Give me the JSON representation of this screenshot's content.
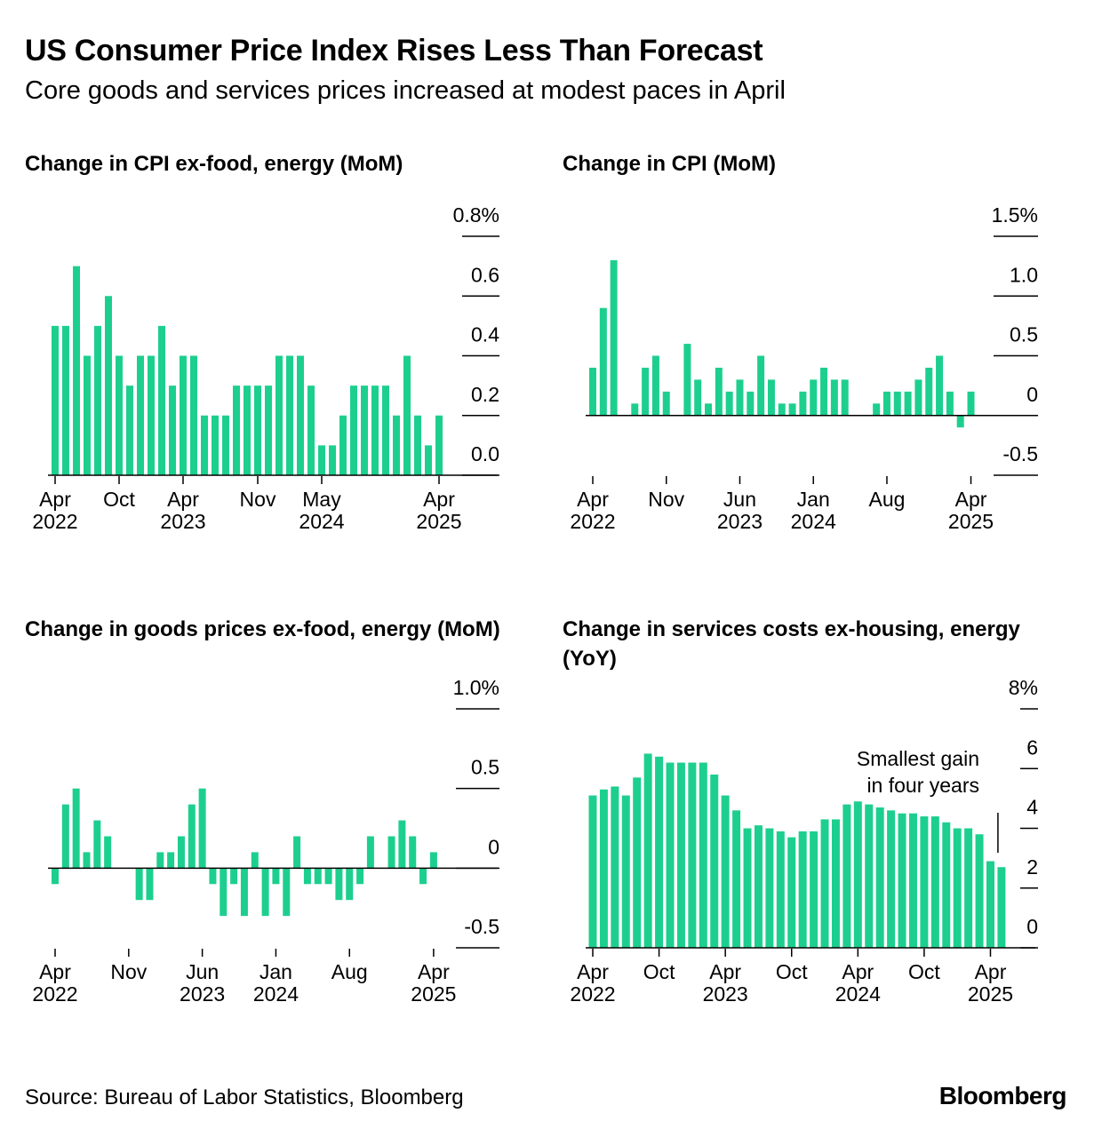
{
  "header": {
    "title": "US Consumer Price Index Rises Less Than Forecast",
    "subtitle": "Core goods and services prices increased at modest paces in April"
  },
  "footer": {
    "source": "Source: Bureau of Labor Statistics, Bloomberg",
    "brand": "Bloomberg"
  },
  "colors": {
    "bar": "#1dcf8e",
    "axis": "#000000"
  },
  "chart_data": [
    {
      "id": "core-cpi",
      "type": "bar",
      "title": "Change in CPI ex-food, energy (MoM)",
      "ylim": [
        0,
        0.8
      ],
      "yticks": [
        {
          "value": 0.8,
          "label": "0.8%"
        },
        {
          "value": 0.6,
          "label": "0.6"
        },
        {
          "value": 0.4,
          "label": "0.4"
        },
        {
          "value": 0.2,
          "label": "0.2"
        },
        {
          "value": 0.0,
          "label": "0.0"
        }
      ],
      "xticks": [
        {
          "index": 0,
          "label": [
            "Apr",
            "2022"
          ]
        },
        {
          "index": 6,
          "label": [
            "Oct"
          ]
        },
        {
          "index": 12,
          "label": [
            "Apr",
            "2023"
          ]
        },
        {
          "index": 19,
          "label": [
            "Nov"
          ]
        },
        {
          "index": 25,
          "label": [
            "May",
            "2024"
          ]
        },
        {
          "index": 36,
          "label": [
            "Apr",
            "2025"
          ]
        }
      ],
      "values": [
        0.5,
        0.5,
        0.7,
        0.4,
        0.5,
        0.6,
        0.4,
        0.3,
        0.4,
        0.4,
        0.5,
        0.3,
        0.4,
        0.4,
        0.2,
        0.2,
        0.2,
        0.3,
        0.3,
        0.3,
        0.3,
        0.4,
        0.4,
        0.4,
        0.3,
        0.1,
        0.1,
        0.2,
        0.3,
        0.3,
        0.3,
        0.3,
        0.2,
        0.4,
        0.2,
        0.1,
        0.2
      ]
    },
    {
      "id": "headline-cpi",
      "type": "bar",
      "title": "Change in CPI (MoM)",
      "ylim": [
        -0.5,
        1.5
      ],
      "yticks": [
        {
          "value": 1.5,
          "label": "1.5%"
        },
        {
          "value": 1.0,
          "label": "1.0"
        },
        {
          "value": 0.5,
          "label": "0.5"
        },
        {
          "value": 0.0,
          "label": "0"
        },
        {
          "value": -0.5,
          "label": "-0.5"
        }
      ],
      "xticks": [
        {
          "index": 0,
          "label": [
            "Apr",
            "2022"
          ]
        },
        {
          "index": 7,
          "label": [
            "Nov"
          ]
        },
        {
          "index": 14,
          "label": [
            "Jun",
            "2023"
          ]
        },
        {
          "index": 21,
          "label": [
            "Jan",
            "2024"
          ]
        },
        {
          "index": 28,
          "label": [
            "Aug"
          ]
        },
        {
          "index": 36,
          "label": [
            "Apr",
            "2025"
          ]
        }
      ],
      "values": [
        0.4,
        0.9,
        1.3,
        0.0,
        0.1,
        0.4,
        0.5,
        0.2,
        0.0,
        0.6,
        0.3,
        0.1,
        0.4,
        0.2,
        0.3,
        0.2,
        0.5,
        0.3,
        0.1,
        0.1,
        0.2,
        0.3,
        0.4,
        0.3,
        0.3,
        0.0,
        0.0,
        0.1,
        0.2,
        0.2,
        0.2,
        0.3,
        0.4,
        0.5,
        0.2,
        -0.1,
        0.2
      ]
    },
    {
      "id": "core-goods",
      "type": "bar",
      "title": "Change in goods prices ex-food, energy (MoM)",
      "ylim": [
        -0.5,
        1.0
      ],
      "yticks": [
        {
          "value": 1.0,
          "label": "1.0%"
        },
        {
          "value": 0.5,
          "label": "0.5"
        },
        {
          "value": 0.0,
          "label": "0"
        },
        {
          "value": -0.5,
          "label": "-0.5"
        }
      ],
      "xticks": [
        {
          "index": 0,
          "label": [
            "Apr",
            "2022"
          ]
        },
        {
          "index": 7,
          "label": [
            "Nov"
          ]
        },
        {
          "index": 14,
          "label": [
            "Jun",
            "2023"
          ]
        },
        {
          "index": 21,
          "label": [
            "Jan",
            "2024"
          ]
        },
        {
          "index": 28,
          "label": [
            "Aug"
          ]
        },
        {
          "index": 36,
          "label": [
            "Apr",
            "2025"
          ]
        }
      ],
      "values": [
        -0.1,
        0.4,
        0.5,
        0.1,
        0.3,
        0.2,
        0.0,
        0.0,
        -0.2,
        -0.2,
        0.1,
        0.1,
        0.2,
        0.4,
        0.5,
        -0.1,
        -0.3,
        -0.1,
        -0.3,
        0.1,
        -0.3,
        -0.1,
        -0.3,
        0.2,
        -0.1,
        -0.1,
        -0.1,
        -0.2,
        -0.2,
        -0.1,
        0.2,
        0.0,
        0.2,
        0.3,
        0.2,
        -0.1,
        0.1
      ]
    },
    {
      "id": "supercore-yoy",
      "type": "bar",
      "title": "Change in services costs ex-housing, energy (YoY)",
      "ylim": [
        0,
        8
      ],
      "yticks": [
        {
          "value": 8,
          "label": "8%"
        },
        {
          "value": 6,
          "label": "6"
        },
        {
          "value": 4,
          "label": "4"
        },
        {
          "value": 2,
          "label": "2"
        },
        {
          "value": 0,
          "label": "0"
        }
      ],
      "xticks": [
        {
          "index": 0,
          "label": [
            "Apr",
            "2022"
          ]
        },
        {
          "index": 6,
          "label": [
            "Oct"
          ]
        },
        {
          "index": 12,
          "label": [
            "Apr",
            "2023"
          ]
        },
        {
          "index": 18,
          "label": [
            "Oct"
          ]
        },
        {
          "index": 24,
          "label": [
            "Apr",
            "2024"
          ]
        },
        {
          "index": 30,
          "label": [
            "Oct"
          ]
        },
        {
          "index": 36,
          "label": [
            "Apr",
            "2025"
          ]
        }
      ],
      "values": [
        5.1,
        5.3,
        5.4,
        5.1,
        5.7,
        6.5,
        6.4,
        6.2,
        6.2,
        6.2,
        6.2,
        5.8,
        5.1,
        4.6,
        4.0,
        4.1,
        4.0,
        3.9,
        3.7,
        3.9,
        3.9,
        4.3,
        4.3,
        4.8,
        4.9,
        4.8,
        4.7,
        4.6,
        4.5,
        4.5,
        4.4,
        4.4,
        4.2,
        4.0,
        4.0,
        3.8,
        2.9,
        2.7
      ],
      "annotation": {
        "lines": [
          "Smallest gain",
          "in four years"
        ],
        "index": 37
      }
    }
  ]
}
